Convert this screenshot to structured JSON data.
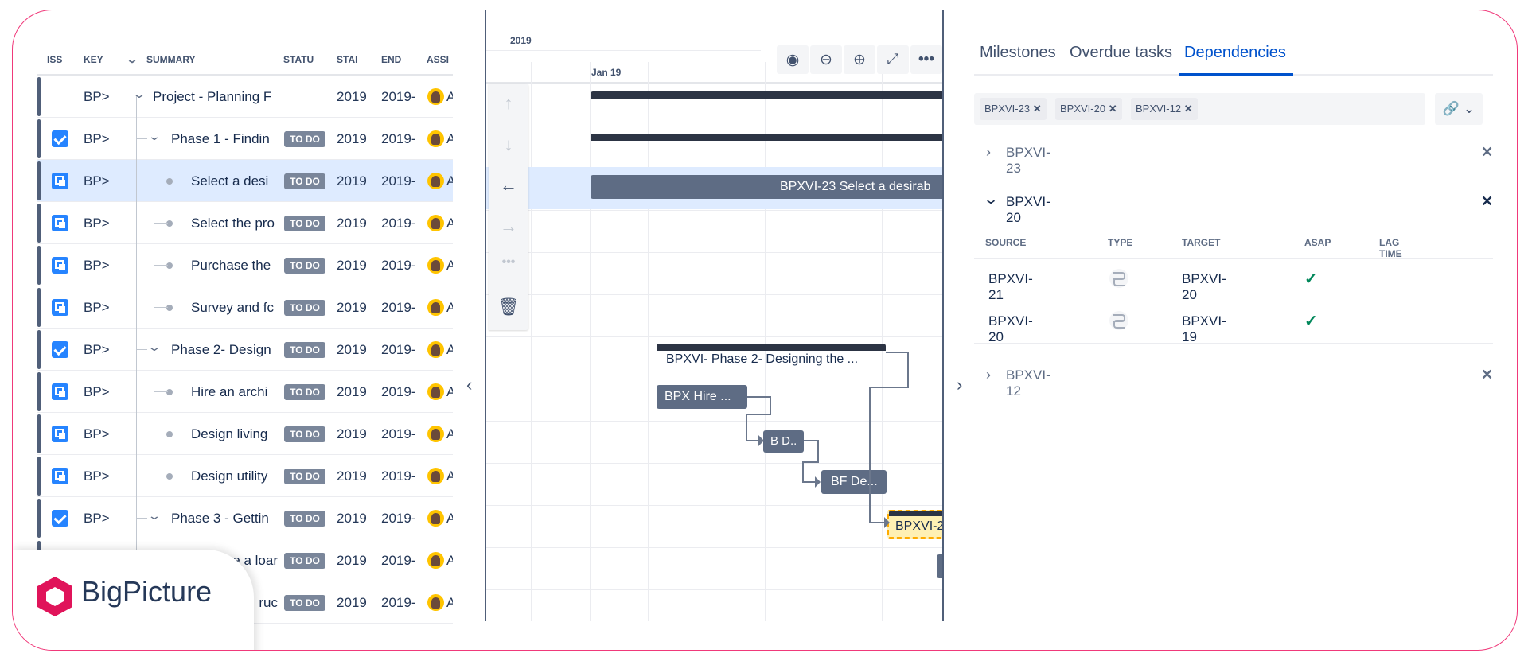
{
  "table": {
    "columns": [
      "ISS",
      "KEY",
      "SUMMARY",
      "STATU",
      "STAI",
      "END",
      "ASSI"
    ],
    "rows": [
      {
        "type": "project",
        "key": "BP>",
        "summary": "Project - Planning F",
        "level": 0,
        "expand": true,
        "status": "",
        "start": "2019",
        "end": "2019-",
        "assignee": "A"
      },
      {
        "type": "check",
        "key": "BP>",
        "summary": "Phase 1 - Findin",
        "level": 1,
        "expand": true,
        "status": "TO DO",
        "start": "2019",
        "end": "2019-",
        "assignee": "A"
      },
      {
        "type": "sub",
        "key": "BP>",
        "summary": "Select a desi",
        "level": 2,
        "status": "TO DO",
        "start": "2019",
        "end": "2019-",
        "assignee": "A",
        "selected": true
      },
      {
        "type": "sub",
        "key": "BP>",
        "summary": "Select the pro",
        "level": 2,
        "status": "TO DO",
        "start": "2019",
        "end": "2019-",
        "assignee": "A"
      },
      {
        "type": "sub",
        "key": "BP>",
        "summary": "Purchase the",
        "level": 2,
        "status": "TO DO",
        "start": "2019",
        "end": "2019-",
        "assignee": "A"
      },
      {
        "type": "sub",
        "key": "BP>",
        "summary": "Survey and fc",
        "level": 2,
        "status": "TO DO",
        "start": "2019",
        "end": "2019-",
        "assignee": "A"
      },
      {
        "type": "check",
        "key": "BP>",
        "summary": "Phase 2- Design",
        "level": 1,
        "expand": true,
        "status": "TO DO",
        "start": "2019",
        "end": "2019-",
        "assignee": "A"
      },
      {
        "type": "sub",
        "key": "BP>",
        "summary": "Hire an archi",
        "level": 2,
        "status": "TO DO",
        "start": "2019",
        "end": "2019-",
        "assignee": "A"
      },
      {
        "type": "sub",
        "key": "BP>",
        "summary": "Design living",
        "level": 2,
        "status": "TO DO",
        "start": "2019",
        "end": "2019-",
        "assignee": "A"
      },
      {
        "type": "sub",
        "key": "BP>",
        "summary": "Design utility",
        "level": 2,
        "status": "TO DO",
        "start": "2019",
        "end": "2019-",
        "assignee": "A"
      },
      {
        "type": "check",
        "key": "BP>",
        "summary": "Phase 3 - Gettin",
        "level": 1,
        "expand": true,
        "status": "TO DO",
        "start": "2019",
        "end": "2019-",
        "assignee": "A"
      },
      {
        "type": "sub",
        "key": "BP>",
        "summary": "re a loar",
        "level": 2,
        "status": "TO DO",
        "start": "2019",
        "end": "2019-",
        "assignee": "A"
      },
      {
        "type": "sub",
        "key": "BP>",
        "summary": "ruc",
        "level": 2,
        "status": "TO DO",
        "start": "2019",
        "end": "2019-",
        "assignee": "A"
      }
    ]
  },
  "gantt": {
    "year": "2019",
    "month": "Jan 19",
    "toolbar": [
      "target-icon",
      "zoom-out-icon",
      "zoom-in-icon",
      "expand-icon",
      "more-icon"
    ],
    "side_tools": [
      "arrow-up-icon",
      "arrow-down-icon",
      "arrow-left-icon",
      "arrow-right-icon",
      "more-icon",
      "trash-icon"
    ],
    "bars": {
      "task23": "BPXVI-23  Select a desirab",
      "phase2": "BPXVI- Phase 2- Designing the ...",
      "hire": "BPX Hire ...",
      "bd": "B D..",
      "bfde": "BF De...",
      "highlight": "BPXVI-2"
    }
  },
  "panel": {
    "tabs": [
      "Milestones",
      "Overdue tasks",
      "Dependencies"
    ],
    "active_tab": "Dependencies",
    "chips": [
      "BPXVI-23",
      "BPXVI-20",
      "BPXVI-12"
    ],
    "groups": [
      {
        "key": "BPXVI-23",
        "expanded": false
      },
      {
        "key": "BPXVI-20",
        "expanded": true
      },
      {
        "key": "BPXVI-12",
        "expanded": false
      }
    ],
    "dep_columns": [
      "SOURCE",
      "TYPE",
      "TARGET",
      "ASAP",
      "LAG TIME"
    ],
    "deps": [
      {
        "source": "BPXVI-21",
        "target": "BPXVI-20",
        "asap": true,
        "lag": ""
      },
      {
        "source": "BPXVI-20",
        "target": "BPXVI-19",
        "asap": true,
        "lag": ""
      }
    ]
  },
  "brand": {
    "name": "BigPicture",
    "color": "#e0145a"
  },
  "colors": {
    "accent": "#0052cc",
    "frame": "#f0397a",
    "bar": "#5e6c84",
    "asap": "#00875a"
  }
}
